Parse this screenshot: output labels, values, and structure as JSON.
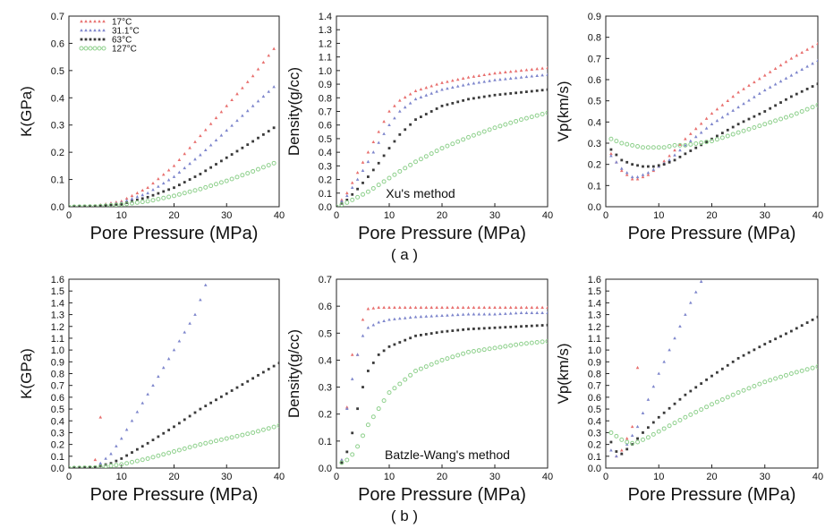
{
  "legend": {
    "entries": [
      "17°C",
      "31.1°C",
      "63°C",
      "127°C"
    ],
    "colors": [
      "#e8706f",
      "#7e86cc",
      "#3a3a3a",
      "#8ed08c"
    ]
  },
  "captions": {
    "top": "( a )",
    "bottom": "( b )"
  },
  "chart_data": [
    {
      "type": "scatter",
      "xlabel": "Pore Pressure (MPa)",
      "ylabel": "K(GPa)",
      "xlim": [
        0,
        40
      ],
      "ylim": [
        0,
        0.7
      ],
      "xticks": [
        0,
        10,
        20,
        30,
        40
      ],
      "yticks": [
        0,
        0.1,
        0.2,
        0.3,
        0.4,
        0.5,
        0.6,
        0.7
      ],
      "grid": false,
      "legend": "top-left",
      "annotation": "",
      "series": [
        {
          "name": "17°C",
          "x": [
            0,
            5,
            10,
            15,
            20,
            25,
            30,
            35,
            39
          ],
          "y": [
            0,
            0.003,
            0.02,
            0.07,
            0.15,
            0.26,
            0.37,
            0.48,
            0.58
          ]
        },
        {
          "name": "31.1°C",
          "x": [
            0,
            5,
            10,
            15,
            20,
            25,
            30,
            35,
            39
          ],
          "y": [
            0,
            0.002,
            0.015,
            0.05,
            0.11,
            0.19,
            0.28,
            0.37,
            0.44
          ]
        },
        {
          "name": "63°C",
          "x": [
            0,
            5,
            10,
            15,
            20,
            25,
            30,
            35,
            39
          ],
          "y": [
            0,
            0.002,
            0.01,
            0.035,
            0.07,
            0.12,
            0.18,
            0.24,
            0.29
          ]
        },
        {
          "name": "127°C",
          "x": [
            0,
            5,
            10,
            15,
            20,
            25,
            30,
            35,
            39
          ],
          "y": [
            0,
            0.001,
            0.008,
            0.02,
            0.04,
            0.065,
            0.095,
            0.13,
            0.16
          ]
        }
      ]
    },
    {
      "type": "scatter",
      "xlabel": "Pore Pressure (MPa)",
      "ylabel": "Density(g/cc)",
      "xlim": [
        0,
        40
      ],
      "ylim": [
        0,
        1.4
      ],
      "xticks": [
        0,
        10,
        20,
        30,
        40
      ],
      "yticks": [
        0,
        0.1,
        0.2,
        0.3,
        0.4,
        0.5,
        0.6,
        0.7,
        0.8,
        0.9,
        1.0,
        1.1,
        1.2,
        1.3,
        1.4
      ],
      "grid": false,
      "legend": "",
      "annotation": "Xu's method",
      "series": [
        {
          "name": "17°C",
          "x": [
            0,
            2,
            4,
            6,
            8,
            10,
            12,
            15,
            20,
            25,
            30,
            35,
            40
          ],
          "y": [
            0,
            0.1,
            0.25,
            0.4,
            0.55,
            0.7,
            0.78,
            0.85,
            0.91,
            0.95,
            0.98,
            1.0,
            1.02
          ]
        },
        {
          "name": "31.1°C",
          "x": [
            0,
            2,
            4,
            6,
            8,
            10,
            12,
            15,
            20,
            25,
            30,
            35,
            40
          ],
          "y": [
            0,
            0.08,
            0.2,
            0.33,
            0.47,
            0.6,
            0.7,
            0.79,
            0.86,
            0.9,
            0.93,
            0.95,
            0.97
          ]
        },
        {
          "name": "63°C",
          "x": [
            0,
            2,
            4,
            6,
            8,
            10,
            12,
            15,
            20,
            25,
            30,
            35,
            40
          ],
          "y": [
            0,
            0.05,
            0.13,
            0.22,
            0.32,
            0.43,
            0.53,
            0.64,
            0.74,
            0.79,
            0.82,
            0.84,
            0.86
          ]
        },
        {
          "name": "127°C",
          "x": [
            0,
            2,
            4,
            6,
            8,
            10,
            12,
            15,
            20,
            25,
            30,
            35,
            40
          ],
          "y": [
            0,
            0.03,
            0.07,
            0.11,
            0.16,
            0.21,
            0.26,
            0.33,
            0.43,
            0.51,
            0.58,
            0.64,
            0.69
          ]
        }
      ]
    },
    {
      "type": "scatter",
      "xlabel": "Pore Pressure (MPa)",
      "ylabel": "Vp(km/s)",
      "xlim": [
        0,
        40
      ],
      "ylim": [
        0,
        0.9
      ],
      "xticks": [
        0,
        10,
        20,
        30,
        40
      ],
      "yticks": [
        0,
        0.1,
        0.2,
        0.3,
        0.4,
        0.5,
        0.6,
        0.7,
        0.8,
        0.9
      ],
      "grid": false,
      "legend": "",
      "annotation": "",
      "series": [
        {
          "name": "17°C",
          "x": [
            1,
            3,
            5,
            6,
            8,
            10,
            12,
            15,
            20,
            25,
            30,
            35,
            40
          ],
          "y": [
            0.25,
            0.17,
            0.13,
            0.13,
            0.15,
            0.19,
            0.24,
            0.32,
            0.44,
            0.54,
            0.62,
            0.7,
            0.77
          ]
        },
        {
          "name": "31.1°C",
          "x": [
            1,
            3,
            5,
            6,
            8,
            10,
            12,
            15,
            20,
            25,
            30,
            35,
            40
          ],
          "y": [
            0.24,
            0.18,
            0.14,
            0.14,
            0.16,
            0.19,
            0.22,
            0.29,
            0.39,
            0.47,
            0.55,
            0.62,
            0.69
          ]
        },
        {
          "name": "63°C",
          "x": [
            1,
            3,
            5,
            7,
            9,
            11,
            13,
            15,
            20,
            25,
            30,
            35,
            40
          ],
          "y": [
            0.27,
            0.22,
            0.2,
            0.19,
            0.19,
            0.2,
            0.22,
            0.25,
            0.32,
            0.39,
            0.45,
            0.52,
            0.58
          ]
        },
        {
          "name": "127°C",
          "x": [
            1,
            3,
            5,
            7,
            9,
            11,
            13,
            15,
            20,
            25,
            30,
            35,
            40
          ],
          "y": [
            0.32,
            0.3,
            0.29,
            0.28,
            0.28,
            0.28,
            0.29,
            0.29,
            0.31,
            0.35,
            0.39,
            0.43,
            0.48
          ]
        }
      ]
    },
    {
      "type": "scatter",
      "xlabel": "Pore Pressure (MPa)",
      "ylabel": "K(GPa)",
      "xlim": [
        0,
        40
      ],
      "ylim": [
        0,
        1.6
      ],
      "xticks": [
        0,
        10,
        20,
        30,
        40
      ],
      "yticks": [
        0,
        0.1,
        0.2,
        0.3,
        0.4,
        0.5,
        0.6,
        0.7,
        0.8,
        0.9,
        1.0,
        1.1,
        1.2,
        1.3,
        1.4,
        1.5,
        1.6
      ],
      "grid": false,
      "legend": "",
      "annotation": "",
      "series": [
        {
          "name": "17°C",
          "x": [
            5,
            6
          ],
          "y": [
            0.07,
            0.43
          ]
        },
        {
          "name": "31.1°C",
          "x": [
            6,
            8,
            10,
            12,
            14,
            16,
            18,
            20,
            22,
            24,
            26
          ],
          "y": [
            0.04,
            0.12,
            0.25,
            0.4,
            0.55,
            0.7,
            0.85,
            1.0,
            1.15,
            1.3,
            1.55
          ]
        },
        {
          "name": "63°C",
          "x": [
            0,
            5,
            8,
            10,
            15,
            20,
            25,
            30,
            35,
            40
          ],
          "y": [
            0,
            0.01,
            0.04,
            0.08,
            0.21,
            0.35,
            0.5,
            0.63,
            0.76,
            0.89
          ]
        },
        {
          "name": "127°C",
          "x": [
            0,
            5,
            10,
            15,
            20,
            25,
            30,
            35,
            40
          ],
          "y": [
            0,
            0.005,
            0.03,
            0.08,
            0.14,
            0.2,
            0.25,
            0.3,
            0.36
          ]
        }
      ]
    },
    {
      "type": "scatter",
      "xlabel": "Pore Pressure (MPa)",
      "ylabel": "Density(g/cc)",
      "xlim": [
        0,
        40
      ],
      "ylim": [
        0,
        0.7
      ],
      "xticks": [
        0,
        10,
        20,
        30,
        40
      ],
      "yticks": [
        0,
        0.1,
        0.2,
        0.3,
        0.4,
        0.5,
        0.6,
        0.7
      ],
      "grid": false,
      "legend": "",
      "annotation": "Batzle-Wang's method",
      "series": [
        {
          "name": "17°C",
          "x": [
            1,
            3,
            4,
            5,
            6,
            8,
            10,
            15,
            20,
            25,
            30,
            35,
            40
          ],
          "y": [
            0.03,
            0.42,
            0.42,
            0.55,
            0.59,
            0.595,
            0.595,
            0.595,
            0.595,
            0.595,
            0.595,
            0.595,
            0.595
          ]
        },
        {
          "name": "31.1°C",
          "x": [
            1,
            2,
            3,
            4,
            5,
            6,
            8,
            10,
            15,
            20,
            25,
            30,
            35,
            40
          ],
          "y": [
            0.03,
            0.22,
            0.33,
            0.42,
            0.49,
            0.52,
            0.54,
            0.55,
            0.56,
            0.565,
            0.57,
            0.57,
            0.575,
            0.575
          ]
        },
        {
          "name": "63°C",
          "x": [
            1,
            2,
            3,
            4,
            5,
            6,
            8,
            10,
            15,
            20,
            25,
            30,
            35,
            40
          ],
          "y": [
            0.02,
            0.06,
            0.13,
            0.22,
            0.3,
            0.36,
            0.42,
            0.45,
            0.49,
            0.505,
            0.515,
            0.52,
            0.525,
            0.53
          ]
        },
        {
          "name": "127°C",
          "x": [
            1,
            2,
            3,
            4,
            5,
            6,
            8,
            10,
            15,
            20,
            25,
            30,
            35,
            40
          ],
          "y": [
            0.02,
            0.03,
            0.05,
            0.08,
            0.12,
            0.16,
            0.22,
            0.28,
            0.36,
            0.4,
            0.43,
            0.445,
            0.46,
            0.47
          ]
        }
      ]
    },
    {
      "type": "scatter",
      "xlabel": "Pore Pressure (MPa)",
      "ylabel": "Vp(km/s)",
      "xlim": [
        0,
        40
      ],
      "ylim": [
        0,
        1.6
      ],
      "xticks": [
        0,
        10,
        20,
        30,
        40
      ],
      "yticks": [
        0,
        0.1,
        0.2,
        0.3,
        0.4,
        0.5,
        0.6,
        0.7,
        0.8,
        0.9,
        1.0,
        1.1,
        1.2,
        1.3,
        1.4,
        1.5,
        1.6
      ],
      "grid": false,
      "legend": "",
      "annotation": "",
      "series": [
        {
          "name": "17°C",
          "x": [
            2,
            3,
            5,
            6
          ],
          "y": [
            0.1,
            0.15,
            0.35,
            0.85
          ]
        },
        {
          "name": "31.1°C",
          "x": [
            1,
            2,
            3,
            4,
            6,
            8,
            10,
            12,
            14,
            16,
            18
          ],
          "y": [
            0.15,
            0.1,
            0.12,
            0.2,
            0.35,
            0.58,
            0.8,
            1.0,
            1.2,
            1.4,
            1.58
          ]
        },
        {
          "name": "63°C",
          "x": [
            1,
            2,
            3,
            5,
            7,
            10,
            15,
            20,
            25,
            30,
            35,
            40
          ],
          "y": [
            0.22,
            0.14,
            0.12,
            0.2,
            0.3,
            0.43,
            0.62,
            0.78,
            0.93,
            1.05,
            1.16,
            1.28
          ]
        },
        {
          "name": "127°C",
          "x": [
            1,
            2,
            3,
            4,
            5,
            6,
            8,
            10,
            15,
            20,
            25,
            30,
            35,
            40
          ],
          "y": [
            0.3,
            0.27,
            0.24,
            0.22,
            0.21,
            0.22,
            0.26,
            0.31,
            0.43,
            0.54,
            0.64,
            0.73,
            0.8,
            0.86
          ]
        }
      ]
    }
  ]
}
